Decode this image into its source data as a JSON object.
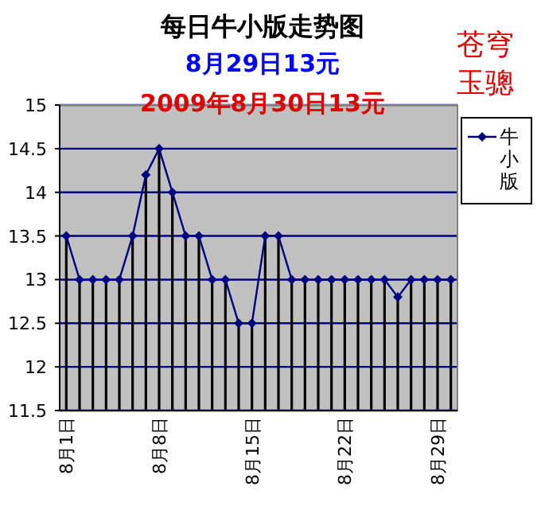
{
  "chart_data": {
    "type": "line",
    "title": "每日牛小版走势图",
    "subtitle": "8月29日13元",
    "annotations": [
      "2009年8月30日13元",
      "苍穹玉骢"
    ],
    "categories": [
      "8月1日",
      null,
      null,
      null,
      null,
      null,
      null,
      "8月8日",
      null,
      null,
      null,
      null,
      null,
      null,
      "8月15日",
      null,
      null,
      null,
      null,
      null,
      null,
      "8月22日",
      null,
      null,
      null,
      null,
      null,
      null,
      "8月29日",
      null
    ],
    "series": [
      {
        "name": "牛小版",
        "color": "#000080",
        "values": [
          13.5,
          13,
          13,
          13,
          13,
          13.5,
          14.2,
          14.5,
          14,
          13.5,
          13.5,
          13,
          13,
          12.5,
          12.5,
          13.5,
          13.5,
          13,
          13,
          13,
          13,
          13,
          13,
          13,
          13,
          12.8,
          13,
          13,
          13,
          13
        ]
      },
      {
        "type": "bar",
        "color": "#000000",
        "values": [
          13.5,
          13,
          13,
          13,
          13,
          13.5,
          14.2,
          14.5,
          14,
          13.5,
          13.5,
          13,
          13,
          12.5,
          12.5,
          13.5,
          13.5,
          13,
          13,
          13,
          13,
          13,
          13,
          13,
          13,
          12.8,
          13,
          13,
          13,
          13
        ]
      }
    ],
    "ylim": [
      11.5,
      15
    ],
    "yticks": [
      11.5,
      12,
      12.5,
      13,
      13.5,
      14,
      14.5,
      15
    ],
    "grid": "y",
    "legend": "right",
    "marker": "diamond",
    "line_style": "solid"
  }
}
